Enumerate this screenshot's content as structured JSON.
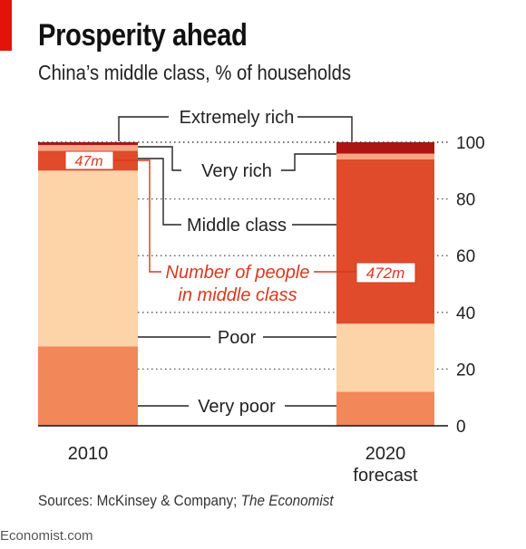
{
  "header": {
    "title": "Prosperity ahead",
    "subtitle": "China’s middle class, % of households"
  },
  "footer": {
    "source_prefix": "Sources: McKinsey & Company; ",
    "source_italic": "The Economist",
    "brand": "Economist.com"
  },
  "colors": {
    "very_poor": "#f2875a",
    "poor": "#fdd3a8",
    "middle_class": "#df4b2b",
    "very_rich": "#f8a585",
    "extremely_rich": "#ad1512",
    "accent_red": "#e3120b",
    "annotation_red": "#d9381e"
  },
  "chart_data": {
    "type": "bar",
    "stacked": true,
    "categories": [
      "2010",
      "2020\nforecast"
    ],
    "category_lines": [
      [
        "2010"
      ],
      [
        "2020",
        "forecast"
      ]
    ],
    "series": [
      {
        "name": "Very poor",
        "key": "very_poor",
        "values": [
          28,
          12
        ]
      },
      {
        "name": "Poor",
        "key": "poor",
        "values": [
          62,
          24
        ]
      },
      {
        "name": "Middle class",
        "key": "middle_class",
        "values": [
          7,
          58
        ]
      },
      {
        "name": "Very rich",
        "key": "very_rich",
        "values": [
          2,
          2
        ]
      },
      {
        "name": "Extremely rich",
        "key": "extremely_rich",
        "values": [
          1,
          4
        ]
      }
    ],
    "ylim": [
      0,
      100
    ],
    "yticks": [
      0,
      20,
      40,
      60,
      80,
      100
    ],
    "grid": true,
    "axis_side": "right",
    "middle_class_people": [
      "47m",
      "472m"
    ],
    "annotation": {
      "line1": "Number of people",
      "line2": "in middle class"
    }
  }
}
